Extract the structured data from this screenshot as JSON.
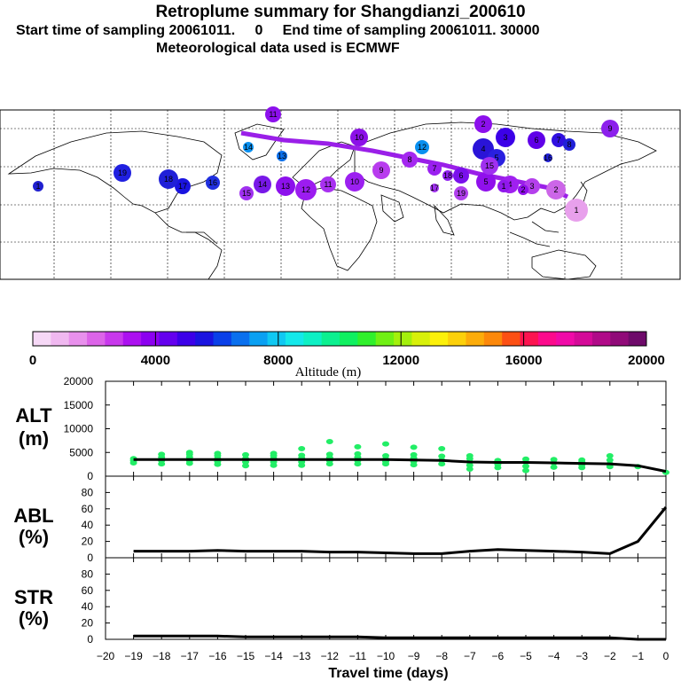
{
  "header": {
    "title": "Retroplume summary for Shangdianzi_200610",
    "sampling_line": "Start time of sampling 20061011.     0     End time of sampling 20061011. 30000",
    "met_line": "Meteorological data used is ECMWF"
  },
  "colors": {
    "alt_points": "#22ee66",
    "line": "#000000",
    "plume": "#9a1fe8",
    "map_land_edge": "#000000"
  },
  "map": {
    "description_icon": "world-map-outline",
    "trajectory_labels": [
      "1",
      "2",
      "3",
      "4",
      "5",
      "6",
      "7",
      "8",
      "9",
      "10",
      "11",
      "12",
      "13",
      "14",
      "15",
      "16",
      "17",
      "18",
      "19"
    ]
  },
  "colorbar": {
    "ticks": [
      "0",
      "4000",
      "8000",
      "12000",
      "16000",
      "20000"
    ],
    "label": "Altitude (m)",
    "colors": [
      "#f6d8f6",
      "#f0b8f0",
      "#e890ec",
      "#dc64e8",
      "#c838ec",
      "#ac10f0",
      "#8c00f0",
      "#6400ee",
      "#3c00e8",
      "#1a14e0",
      "#0a40e8",
      "#0a70ee",
      "#0aa0f2",
      "#10c8f2",
      "#14e8ea",
      "#0ef0c4",
      "#0cf090",
      "#10f060",
      "#30f02c",
      "#70f014",
      "#a4f00c",
      "#d8f00a",
      "#fcf00a",
      "#fcd00a",
      "#fcac0a",
      "#fc880a",
      "#fc5014",
      "#fc1450",
      "#fc0a8c",
      "#f00aa8",
      "#d40a98",
      "#b00a88",
      "#900a78",
      "#6e0a6a"
    ]
  },
  "chart_data": [
    {
      "type": "line",
      "panel": "ALT",
      "ylabel_top": "ALT",
      "ylabel_unit": "(m)",
      "ylim": [
        0,
        20000
      ],
      "yticks": [
        0,
        5000,
        10000,
        15000,
        20000
      ],
      "xlim": [
        -20,
        0
      ],
      "series": [
        {
          "name": "mean altitude",
          "x": [
            -19,
            -18,
            -17,
            -16,
            -15,
            -14,
            -13,
            -12,
            -11,
            -10,
            -9,
            -8,
            -7,
            -6,
            -5,
            -4,
            -3,
            -2,
            -1,
            0
          ],
          "values": [
            3500,
            3500,
            3500,
            3500,
            3500,
            3500,
            3500,
            3500,
            3500,
            3500,
            3400,
            3300,
            3000,
            2900,
            2900,
            2800,
            2700,
            2600,
            2200,
            1000
          ]
        }
      ],
      "scatter": [
        {
          "x": -19,
          "y": [
            2800,
            3300,
            3700
          ]
        },
        {
          "x": -18,
          "y": [
            2600,
            3300,
            4000,
            4600
          ]
        },
        {
          "x": -17,
          "y": [
            2700,
            3300,
            4000,
            4600,
            5000
          ]
        },
        {
          "x": -16,
          "y": [
            2500,
            3100,
            3700,
            4300,
            4800
          ]
        },
        {
          "x": -15,
          "y": [
            2200,
            3000,
            3700,
            4500
          ]
        },
        {
          "x": -14,
          "y": [
            2300,
            3000,
            3700,
            4300,
            4800
          ]
        },
        {
          "x": -13,
          "y": [
            2300,
            3000,
            3800,
            4400,
            5800
          ]
        },
        {
          "x": -12,
          "y": [
            2600,
            3300,
            3900,
            4600,
            7300
          ]
        },
        {
          "x": -11,
          "y": [
            2600,
            3300,
            4000,
            4700,
            6200
          ]
        },
        {
          "x": -10,
          "y": [
            2600,
            3100,
            3600,
            4300,
            6800
          ]
        },
        {
          "x": -9,
          "y": [
            2400,
            3100,
            3800,
            4500,
            6100
          ]
        },
        {
          "x": -8,
          "y": [
            2600,
            3400,
            4200,
            5800
          ]
        },
        {
          "x": -7,
          "y": [
            1500,
            2300,
            3000,
            3700,
            4300
          ]
        },
        {
          "x": -6,
          "y": [
            1800,
            2500,
            3300
          ]
        },
        {
          "x": -5,
          "y": [
            1200,
            2100,
            3000,
            3600
          ]
        },
        {
          "x": -4,
          "y": [
            1900,
            2800,
            3500
          ]
        },
        {
          "x": -3,
          "y": [
            1800,
            2400,
            3000,
            3400
          ]
        },
        {
          "x": -2,
          "y": [
            2000,
            2600,
            3400,
            4300
          ]
        },
        {
          "x": -1,
          "y": [
            2000
          ]
        },
        {
          "x": 0,
          "y": [
            800
          ]
        }
      ]
    },
    {
      "type": "line",
      "panel": "ABL",
      "ylabel_top": "ABL",
      "ylabel_unit": "(%)",
      "ylim": [
        0,
        100
      ],
      "yticks": [
        0,
        20,
        40,
        60,
        80
      ],
      "xlim": [
        -20,
        0
      ],
      "series": [
        {
          "name": "ABL fraction",
          "x": [
            -19,
            -18,
            -17,
            -16,
            -15,
            -14,
            -13,
            -12,
            -11,
            -10,
            -9,
            -8,
            -7,
            -6,
            -5,
            -4,
            -3,
            -2,
            -1,
            0
          ],
          "values": [
            8,
            8,
            8,
            9,
            8,
            8,
            8,
            7,
            7,
            6,
            5,
            5,
            8,
            10,
            9,
            8,
            7,
            5,
            20,
            62
          ]
        }
      ]
    },
    {
      "type": "line",
      "panel": "STR",
      "ylabel_top": "STR",
      "ylabel_unit": "(%)",
      "ylim": [
        0,
        100
      ],
      "yticks": [
        0,
        20,
        40,
        60,
        80
      ],
      "xlim": [
        -20,
        0
      ],
      "xlabel": "Travel time (days)",
      "xticks": [
        -20,
        -19,
        -18,
        -17,
        -16,
        -15,
        -14,
        -13,
        -12,
        -11,
        -10,
        -9,
        -8,
        -7,
        -6,
        -5,
        -4,
        -3,
        -2,
        -1,
        0
      ],
      "series": [
        {
          "name": "stratospheric fraction",
          "x": [
            -19,
            -18,
            -17,
            -16,
            -15,
            -14,
            -13,
            -12,
            -11,
            -10,
            -9,
            -8,
            -7,
            -6,
            -5,
            -4,
            -3,
            -2,
            -1,
            0
          ],
          "values": [
            4,
            4,
            4,
            4,
            3,
            3,
            3,
            3,
            3,
            2,
            2,
            2,
            2,
            2,
            2,
            2,
            2,
            2,
            0,
            0
          ]
        }
      ]
    }
  ]
}
